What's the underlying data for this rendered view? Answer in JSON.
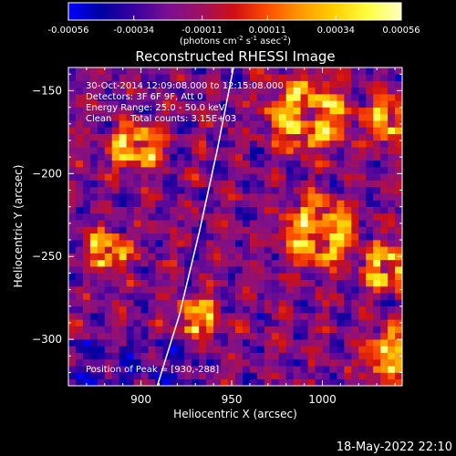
{
  "colorbar": {
    "ticks": [
      "-0.00056",
      "-0.00034",
      "-0.00011",
      "0.00011",
      "0.00034",
      "0.00056"
    ],
    "tick_values": [
      -0.00056,
      -0.00034,
      -0.00011,
      0.00011,
      0.00034,
      0.00056
    ],
    "range": [
      -0.00056,
      0.00056
    ],
    "units_main": "(photons cm",
    "units_sup1": "-2",
    "units_mid": " s",
    "units_sup2": "-1",
    "units_end": " asec",
    "units_sup3": "-2",
    "units_close": ")",
    "colormap": [
      "#0000ff",
      "#0000a0",
      "#3a00a0",
      "#7a1090",
      "#a01060",
      "#d01010",
      "#ff5000",
      "#ff9a00",
      "#ffd000",
      "#ffff40",
      "#ffffc0"
    ]
  },
  "chart_data": {
    "type": "heatmap",
    "title": "Reconstructed RHESSI Image",
    "xlabel": "Heliocentric X (arcsec)",
    "ylabel": "Heliocentric Y (arcsec)",
    "xlim": [
      860,
      1044
    ],
    "ylim": [
      -328,
      -136
    ],
    "x_ticks": [
      900,
      950,
      1000
    ],
    "y_ticks": [
      -150,
      -200,
      -250,
      -300
    ],
    "x_tick_labels": [
      "900",
      "950",
      "1000"
    ],
    "y_tick_labels": [
      "−150",
      "−200",
      "−250",
      "−300"
    ],
    "grid": false,
    "pixel_size_arcsec": 4,
    "bright_regions": [
      {
        "x": 895,
        "y": -186,
        "r": 14
      },
      {
        "x": 990,
        "y": -166,
        "r": 22
      },
      {
        "x": 1037,
        "y": -170,
        "r": 14
      },
      {
        "x": 996,
        "y": -237,
        "r": 20
      },
      {
        "x": 1034,
        "y": -258,
        "r": 14
      },
      {
        "x": 930,
        "y": -288,
        "r": 12
      },
      {
        "x": 1040,
        "y": -311,
        "r": 18
      },
      {
        "x": 880,
        "y": -248,
        "r": 12
      }
    ],
    "limb_curve": [
      [
        951,
        -136
      ],
      [
        942,
        -186
      ],
      [
        932,
        -236
      ],
      [
        921,
        -286
      ],
      [
        909,
        -328
      ]
    ],
    "annotations": {
      "time_range": "30-Oct-2014 12:09:08.000 to 12:15:08.000",
      "detectors": "Detectors: 3F 6F 9F, Att 0",
      "energy": "Energy Range: 25.0 - 50.0 keV",
      "method": "Clean",
      "counts": "Total counts: 3.15E+03",
      "peak": "Position of Peak = [930,-288]"
    }
  },
  "footer": {
    "date": "18-May-2022 22:10"
  }
}
